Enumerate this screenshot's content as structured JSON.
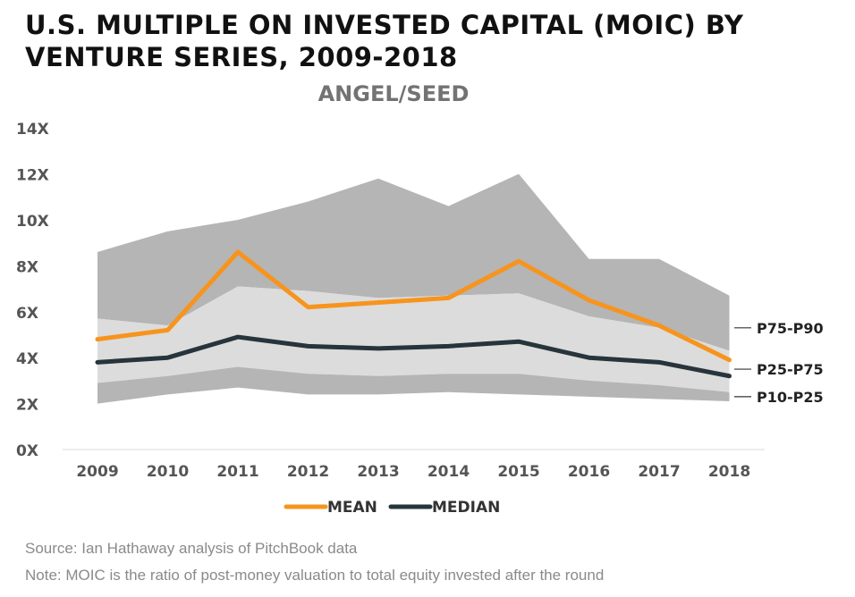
{
  "title_line1": "U.S. MULTIPLE ON INVESTED CAPITAL (MOIC) BY",
  "title_line2": "VENTURE SERIES, 2009-2018",
  "source": "Source: Ian Hathaway analysis of PitchBook data",
  "note": "Note: MOIC is the ratio of post-money valuation to total equity invested after the round",
  "chart_data": {
    "type": "line",
    "title": "ANGEL/SEED",
    "xlabel": "",
    "ylabel": "",
    "ylim": [
      0,
      14
    ],
    "yticks": [
      0,
      2,
      4,
      6,
      8,
      10,
      12,
      14
    ],
    "ytick_labels": [
      "0X",
      "2X",
      "4X",
      "6X",
      "8X",
      "10X",
      "12X",
      "14X"
    ],
    "categories": [
      "2009",
      "2010",
      "2011",
      "2012",
      "2013",
      "2014",
      "2015",
      "2016",
      "2017",
      "2018"
    ],
    "bands": [
      {
        "name": "P75-P90",
        "color": "#b5b5b5",
        "lower": [
          5.7,
          5.4,
          7.1,
          6.9,
          6.6,
          6.7,
          6.8,
          5.8,
          5.3,
          4.3
        ],
        "upper": [
          8.6,
          9.5,
          10.0,
          10.8,
          11.8,
          10.6,
          12.0,
          8.3,
          8.3,
          6.7
        ]
      },
      {
        "name": "P25-P75",
        "color": "#dcdcdc",
        "lower": [
          2.9,
          3.2,
          3.6,
          3.3,
          3.2,
          3.3,
          3.3,
          3.0,
          2.8,
          2.5
        ],
        "upper": [
          5.7,
          5.4,
          7.1,
          6.9,
          6.6,
          6.7,
          6.8,
          5.8,
          5.3,
          4.3
        ]
      },
      {
        "name": "P10-P25",
        "color": "#b5b5b5",
        "lower": [
          2.0,
          2.4,
          2.7,
          2.4,
          2.4,
          2.5,
          2.4,
          2.3,
          2.2,
          2.1
        ],
        "upper": [
          2.9,
          3.2,
          3.6,
          3.3,
          3.2,
          3.3,
          3.3,
          3.0,
          2.8,
          2.5
        ]
      }
    ],
    "series": [
      {
        "name": "MEAN",
        "color": "#f7941d",
        "values": [
          4.8,
          5.2,
          8.6,
          6.2,
          6.4,
          6.6,
          8.2,
          6.5,
          5.4,
          3.9
        ]
      },
      {
        "name": "MEDIAN",
        "color": "#27343c",
        "values": [
          3.8,
          4.0,
          4.9,
          4.5,
          4.4,
          4.5,
          4.7,
          4.0,
          3.8,
          3.2
        ]
      }
    ],
    "legend": [
      "MEAN",
      "MEDIAN"
    ],
    "band_labels": [
      "P75-P90",
      "P25-P75",
      "P10-P25"
    ],
    "band_label_values": [
      5.3,
      3.5,
      2.3
    ]
  }
}
